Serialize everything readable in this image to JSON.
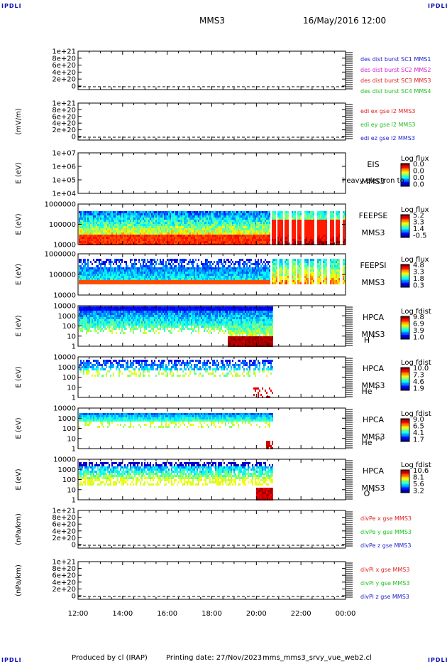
{
  "header": {
    "corner_labels": [
      "IPDLI",
      "IPDLI",
      "IPDLI",
      "IPDLI"
    ],
    "spacecraft": "MMS3",
    "date_time": "16/May/2016 12:00"
  },
  "footer": {
    "produced": "Produced by cl (IRAP)",
    "printing": "Printing date: 27/Nov/2023",
    "file": "mms_mms3_srvy_vue_web2.cl"
  },
  "time_axis": {
    "ticks": [
      "12:00",
      "14:00",
      "16:00",
      "18:00",
      "20:00",
      "22:00",
      "00:00"
    ]
  },
  "chart_data": [
    {
      "type": "line",
      "id": "des",
      "ylabel": "",
      "yticks": [
        "1e+21",
        "8e+20",
        "6e+20",
        "4e+20",
        "2e+20",
        "0"
      ],
      "legend": [
        {
          "text": "des dist burst SC1 MMS1",
          "color": "#2020d0"
        },
        {
          "text": "des dist burst SC2 MMS2",
          "color": "#d020d0"
        },
        {
          "text": "des dist burst SC3 MMS3",
          "color": "#e02020"
        },
        {
          "text": "des dist burst SC4 MMS4",
          "color": "#20c020"
        }
      ]
    },
    {
      "type": "line",
      "id": "edi",
      "ylabel": "(mV/m)",
      "yticks": [
        "1e+21",
        "8e+20",
        "6e+20",
        "4e+20",
        "2e+20",
        "0"
      ],
      "legend": [
        {
          "text": "edi ex gse l2 MMS3",
          "color": "#e02020"
        },
        {
          "text": "edi ey gse l2 MMS3",
          "color": "#20c020"
        },
        {
          "text": "edi ez gse l2 MMS3",
          "color": "#2020d0"
        }
      ]
    },
    {
      "type": "heatmap",
      "id": "eis",
      "ylabel": "E (eV)",
      "yticks": [
        "1e+07",
        "1e+06",
        "1e+05",
        "1e+04"
      ],
      "instrument": "EIS",
      "sc": "MMS3",
      "overlay_text": "heavy electron to",
      "scale_title": "Log flux",
      "scale_values": [
        "0.0",
        "0.0",
        "0.0",
        "0.0"
      ]
    },
    {
      "type": "heatmap",
      "id": "feepse",
      "ylabel": "E (eV)",
      "yticks": [
        "1000000",
        "100000",
        "10000"
      ],
      "instrument": "FEEPSE",
      "sc": "MMS3",
      "scale_title": "Log flux",
      "scale_values": [
        "5.2",
        "3.3",
        "1.4",
        "-0.5"
      ]
    },
    {
      "type": "heatmap",
      "id": "feepsi",
      "ylabel": "E (eV)",
      "yticks": [
        "1000000",
        "100000",
        "10000"
      ],
      "instrument": "FEEPSI",
      "sc": "MMS3",
      "scale_title": "Log flux",
      "scale_values": [
        "4.8",
        "3.3",
        "1.8",
        "0.3"
      ]
    },
    {
      "type": "heatmap",
      "id": "hpca_h",
      "ylabel": "E (eV)",
      "yticks": [
        "10000",
        "1000",
        "100",
        "10",
        "1"
      ],
      "instrument": "HPCA",
      "sc": "MMS3",
      "species": "H",
      "charge": "+",
      "scale_title": "Log fdist",
      "scale_values": [
        "9.8",
        "6.9",
        "3.9",
        "1.0"
      ]
    },
    {
      "type": "heatmap",
      "id": "hpca_he",
      "ylabel": "E (eV)",
      "yticks": [
        "10000",
        "1000",
        "100",
        "10",
        "1"
      ],
      "instrument": "HPCA",
      "sc": "MMS3",
      "species": "He",
      "charge": "+",
      "scale_title": "Log fdist",
      "scale_values": [
        "10.0",
        "7.3",
        "4.6",
        "1.9"
      ]
    },
    {
      "type": "heatmap",
      "id": "hpca_hepp",
      "ylabel": "E (eV)",
      "yticks": [
        "10000",
        "1000",
        "100",
        "10",
        "1"
      ],
      "instrument": "HPCA",
      "sc": "MMS3",
      "species": "He",
      "charge": "++",
      "scale_title": "Log fdist",
      "scale_values": [
        "9.0",
        "6.5",
        "4.1",
        "1.7"
      ]
    },
    {
      "type": "heatmap",
      "id": "hpca_o",
      "ylabel": "E (eV)",
      "yticks": [
        "10000",
        "1000",
        "100",
        "10",
        "1"
      ],
      "instrument": "HPCA",
      "sc": "MMS3",
      "species": "O",
      "charge": "+",
      "scale_title": "Log fdist",
      "scale_values": [
        "10.6",
        "8.1",
        "5.6",
        "3.2"
      ]
    },
    {
      "type": "line",
      "id": "divpe",
      "ylabel": "(nPa/km)",
      "yticks": [
        "1e+21",
        "8e+20",
        "6e+20",
        "4e+20",
        "2e+20",
        "0"
      ],
      "legend": [
        {
          "text": "divPe x gse MMS3",
          "color": "#e02020"
        },
        {
          "text": "divPe y gse MMS3",
          "color": "#20c020"
        },
        {
          "text": "divPe z gse MMS3",
          "color": "#2020d0"
        }
      ]
    },
    {
      "type": "line",
      "id": "divpi",
      "ylabel": "(nPa/km)",
      "yticks": [
        "1e+21",
        "8e+20",
        "6e+20",
        "4e+20",
        "2e+20",
        "0"
      ],
      "legend": [
        {
          "text": "divPi x gse MMS3",
          "color": "#e02020"
        },
        {
          "text": "divPi y gse MMS3",
          "color": "#20c020"
        },
        {
          "text": "divPi z gse MMS3",
          "color": "#2020d0"
        }
      ]
    }
  ]
}
